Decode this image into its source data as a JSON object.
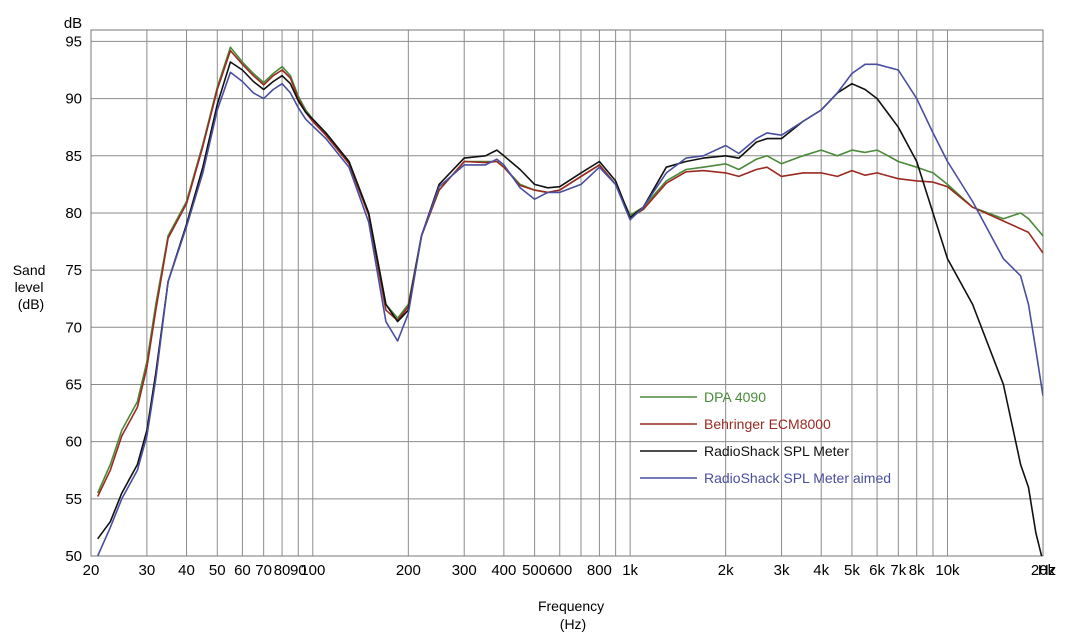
{
  "chart_data": {
    "type": "line",
    "xscale": "log",
    "xlim": [
      20,
      20000
    ],
    "ylim": [
      50,
      96
    ],
    "grid": true,
    "legend_position": "lower-right",
    "y_unit_label": "dB",
    "ylabel": [
      "Sand",
      "level",
      "(dB)"
    ],
    "xlabel": [
      "Frequency",
      "(Hz)"
    ],
    "x_unit": "Hz",
    "xticks": [
      {
        "v": 20,
        "label": "20"
      },
      {
        "v": 30,
        "label": "30"
      },
      {
        "v": 40,
        "label": "40"
      },
      {
        "v": 50,
        "label": "50"
      },
      {
        "v": 60,
        "label": "60"
      },
      {
        "v": 70,
        "label": "70"
      },
      {
        "v": 80,
        "label": "80"
      },
      {
        "v": 90,
        "label": "90"
      },
      {
        "v": 100,
        "label": "100"
      },
      {
        "v": 200,
        "label": "200"
      },
      {
        "v": 300,
        "label": "300"
      },
      {
        "v": 400,
        "label": "400"
      },
      {
        "v": 500,
        "label": "500"
      },
      {
        "v": 600,
        "label": "600"
      },
      {
        "v": 800,
        "label": "800"
      },
      {
        "v": 1000,
        "label": "1k"
      },
      {
        "v": 2000,
        "label": "2k"
      },
      {
        "v": 3000,
        "label": "3k"
      },
      {
        "v": 4000,
        "label": "4k"
      },
      {
        "v": 5000,
        "label": "5k"
      },
      {
        "v": 6000,
        "label": "6k"
      },
      {
        "v": 7000,
        "label": "7k"
      },
      {
        "v": 8000,
        "label": "8k"
      },
      {
        "v": 10000,
        "label": "10k"
      },
      {
        "v": 20000,
        "label": "20k"
      }
    ],
    "yticks": [
      50,
      55,
      60,
      65,
      70,
      75,
      80,
      85,
      90,
      95
    ],
    "series": [
      {
        "name": "DPA 4090",
        "color": "#4a8a3a",
        "points": [
          [
            21,
            55.5
          ],
          [
            23,
            58
          ],
          [
            25,
            61
          ],
          [
            28,
            63.5
          ],
          [
            30,
            67
          ],
          [
            32,
            72
          ],
          [
            35,
            78
          ],
          [
            40,
            81
          ],
          [
            45,
            86
          ],
          [
            50,
            91
          ],
          [
            55,
            94.5
          ],
          [
            60,
            93.2
          ],
          [
            65,
            92.2
          ],
          [
            70,
            91.4
          ],
          [
            75,
            92.2
          ],
          [
            80,
            92.8
          ],
          [
            85,
            92
          ],
          [
            90,
            90.2
          ],
          [
            95,
            89
          ],
          [
            100,
            88.2
          ],
          [
            110,
            87
          ],
          [
            130,
            84.5
          ],
          [
            150,
            80
          ],
          [
            170,
            72
          ],
          [
            185,
            70.8
          ],
          [
            200,
            72
          ],
          [
            220,
            78
          ],
          [
            250,
            82
          ],
          [
            300,
            84.5
          ],
          [
            350,
            84.5
          ],
          [
            380,
            84.5
          ],
          [
            400,
            84
          ],
          [
            450,
            82.5
          ],
          [
            500,
            82
          ],
          [
            550,
            81.8
          ],
          [
            600,
            82
          ],
          [
            700,
            83.2
          ],
          [
            800,
            84.2
          ],
          [
            900,
            82.5
          ],
          [
            1000,
            79.8
          ],
          [
            1100,
            80.5
          ],
          [
            1300,
            82.8
          ],
          [
            1500,
            83.8
          ],
          [
            1700,
            84
          ],
          [
            2000,
            84.3
          ],
          [
            2200,
            83.8
          ],
          [
            2500,
            84.7
          ],
          [
            2700,
            85
          ],
          [
            3000,
            84.3
          ],
          [
            3500,
            85
          ],
          [
            4000,
            85.5
          ],
          [
            4500,
            85
          ],
          [
            5000,
            85.5
          ],
          [
            5500,
            85.3
          ],
          [
            6000,
            85.5
          ],
          [
            6500,
            85
          ],
          [
            7000,
            84.5
          ],
          [
            8000,
            84
          ],
          [
            9000,
            83.5
          ],
          [
            10000,
            82.5
          ],
          [
            12000,
            80.5
          ],
          [
            15000,
            79.5
          ],
          [
            17000,
            80
          ],
          [
            18000,
            79.5
          ],
          [
            20000,
            78
          ]
        ]
      },
      {
        "name": "Behringer ECM8000",
        "color": "#9a2a22",
        "points": [
          [
            21,
            55.2
          ],
          [
            23,
            57.5
          ],
          [
            25,
            60.5
          ],
          [
            28,
            63
          ],
          [
            30,
            66.5
          ],
          [
            32,
            71.5
          ],
          [
            35,
            77.8
          ],
          [
            40,
            80.8
          ],
          [
            45,
            85.8
          ],
          [
            50,
            90.8
          ],
          [
            55,
            94.2
          ],
          [
            60,
            93
          ],
          [
            65,
            92
          ],
          [
            70,
            91.2
          ],
          [
            75,
            92
          ],
          [
            80,
            92.5
          ],
          [
            85,
            91.8
          ],
          [
            90,
            90
          ],
          [
            95,
            88.8
          ],
          [
            100,
            88
          ],
          [
            110,
            86.8
          ],
          [
            130,
            84.3
          ],
          [
            150,
            79.8
          ],
          [
            170,
            71.5
          ],
          [
            185,
            70.6
          ],
          [
            200,
            71.8
          ],
          [
            220,
            78
          ],
          [
            250,
            82
          ],
          [
            300,
            84.5
          ],
          [
            350,
            84.4
          ],
          [
            380,
            84.5
          ],
          [
            400,
            84
          ],
          [
            450,
            82.4
          ],
          [
            500,
            82
          ],
          [
            550,
            81.8
          ],
          [
            600,
            82
          ],
          [
            700,
            83.2
          ],
          [
            800,
            84.2
          ],
          [
            900,
            82.5
          ],
          [
            1000,
            79.6
          ],
          [
            1100,
            80.3
          ],
          [
            1300,
            82.6
          ],
          [
            1500,
            83.6
          ],
          [
            1700,
            83.7
          ],
          [
            2000,
            83.5
          ],
          [
            2200,
            83.2
          ],
          [
            2500,
            83.8
          ],
          [
            2700,
            84
          ],
          [
            3000,
            83.2
          ],
          [
            3500,
            83.5
          ],
          [
            4000,
            83.5
          ],
          [
            4500,
            83.2
          ],
          [
            5000,
            83.7
          ],
          [
            5500,
            83.3
          ],
          [
            6000,
            83.5
          ],
          [
            7000,
            83
          ],
          [
            8000,
            82.8
          ],
          [
            9000,
            82.7
          ],
          [
            10000,
            82.3
          ],
          [
            12000,
            80.5
          ],
          [
            15000,
            79.3
          ],
          [
            18000,
            78.3
          ],
          [
            20000,
            76.5
          ]
        ]
      },
      {
        "name": "RadioShack SPL Meter",
        "color": "#111111",
        "points": [
          [
            21,
            51.5
          ],
          [
            23,
            53
          ],
          [
            25,
            55.5
          ],
          [
            28,
            58
          ],
          [
            30,
            61
          ],
          [
            32,
            66
          ],
          [
            35,
            74
          ],
          [
            40,
            79
          ],
          [
            45,
            84
          ],
          [
            50,
            89.5
          ],
          [
            55,
            93.2
          ],
          [
            60,
            92.5
          ],
          [
            65,
            91.5
          ],
          [
            70,
            90.8
          ],
          [
            75,
            91.5
          ],
          [
            80,
            92
          ],
          [
            85,
            91.3
          ],
          [
            90,
            89.8
          ],
          [
            95,
            88.8
          ],
          [
            100,
            88.2
          ],
          [
            110,
            87
          ],
          [
            130,
            84.5
          ],
          [
            150,
            80
          ],
          [
            170,
            72
          ],
          [
            185,
            70.5
          ],
          [
            200,
            71.5
          ],
          [
            220,
            78
          ],
          [
            250,
            82.5
          ],
          [
            300,
            84.8
          ],
          [
            350,
            85
          ],
          [
            380,
            85.5
          ],
          [
            400,
            85
          ],
          [
            450,
            83.8
          ],
          [
            500,
            82.5
          ],
          [
            550,
            82.2
          ],
          [
            600,
            82.3
          ],
          [
            700,
            83.5
          ],
          [
            800,
            84.5
          ],
          [
            900,
            82.8
          ],
          [
            1000,
            79.6
          ],
          [
            1100,
            80.5
          ],
          [
            1300,
            84
          ],
          [
            1500,
            84.5
          ],
          [
            1700,
            84.8
          ],
          [
            2000,
            85
          ],
          [
            2200,
            84.8
          ],
          [
            2500,
            86.2
          ],
          [
            2700,
            86.5
          ],
          [
            3000,
            86.5
          ],
          [
            3500,
            88
          ],
          [
            4000,
            89
          ],
          [
            4500,
            90.5
          ],
          [
            5000,
            91.3
          ],
          [
            5500,
            90.8
          ],
          [
            6000,
            90
          ],
          [
            7000,
            87.5
          ],
          [
            8000,
            84.5
          ],
          [
            9000,
            80
          ],
          [
            10000,
            76
          ],
          [
            12000,
            72
          ],
          [
            15000,
            65
          ],
          [
            17000,
            58
          ],
          [
            18000,
            56
          ],
          [
            19000,
            52
          ],
          [
            20000,
            49.5
          ]
        ]
      },
      {
        "name": "RadioShack SPL Meter aimed",
        "color": "#4a4ea0",
        "points": [
          [
            21,
            50
          ],
          [
            23,
            52.5
          ],
          [
            25,
            55
          ],
          [
            28,
            57.5
          ],
          [
            30,
            60.5
          ],
          [
            32,
            65.5
          ],
          [
            35,
            74
          ],
          [
            40,
            78.8
          ],
          [
            45,
            83.5
          ],
          [
            50,
            89
          ],
          [
            55,
            92.3
          ],
          [
            60,
            91.5
          ],
          [
            65,
            90.5
          ],
          [
            70,
            90
          ],
          [
            75,
            90.8
          ],
          [
            80,
            91.3
          ],
          [
            85,
            90.5
          ],
          [
            90,
            89.2
          ],
          [
            95,
            88.2
          ],
          [
            100,
            87.6
          ],
          [
            110,
            86.5
          ],
          [
            130,
            84
          ],
          [
            150,
            79.2
          ],
          [
            170,
            70.5
          ],
          [
            185,
            68.8
          ],
          [
            200,
            71.2
          ],
          [
            220,
            78
          ],
          [
            250,
            82.3
          ],
          [
            300,
            84.2
          ],
          [
            350,
            84.2
          ],
          [
            380,
            84.7
          ],
          [
            400,
            84.2
          ],
          [
            450,
            82.2
          ],
          [
            500,
            81.2
          ],
          [
            550,
            81.8
          ],
          [
            600,
            81.8
          ],
          [
            700,
            82.5
          ],
          [
            800,
            84
          ],
          [
            900,
            82.5
          ],
          [
            1000,
            79.4
          ],
          [
            1100,
            80.5
          ],
          [
            1300,
            83.5
          ],
          [
            1500,
            84.8
          ],
          [
            1700,
            85
          ],
          [
            2000,
            85.9
          ],
          [
            2200,
            85.2
          ],
          [
            2500,
            86.5
          ],
          [
            2700,
            87
          ],
          [
            3000,
            86.8
          ],
          [
            3500,
            88
          ],
          [
            4000,
            89
          ],
          [
            4500,
            90.5
          ],
          [
            5000,
            92.2
          ],
          [
            5500,
            93
          ],
          [
            6000,
            93
          ],
          [
            7000,
            92.5
          ],
          [
            8000,
            90
          ],
          [
            9000,
            87
          ],
          [
            10000,
            84.5
          ],
          [
            12000,
            81
          ],
          [
            15000,
            76
          ],
          [
            17000,
            74.5
          ],
          [
            18000,
            72
          ],
          [
            19000,
            68
          ],
          [
            20000,
            64
          ]
        ]
      }
    ]
  }
}
